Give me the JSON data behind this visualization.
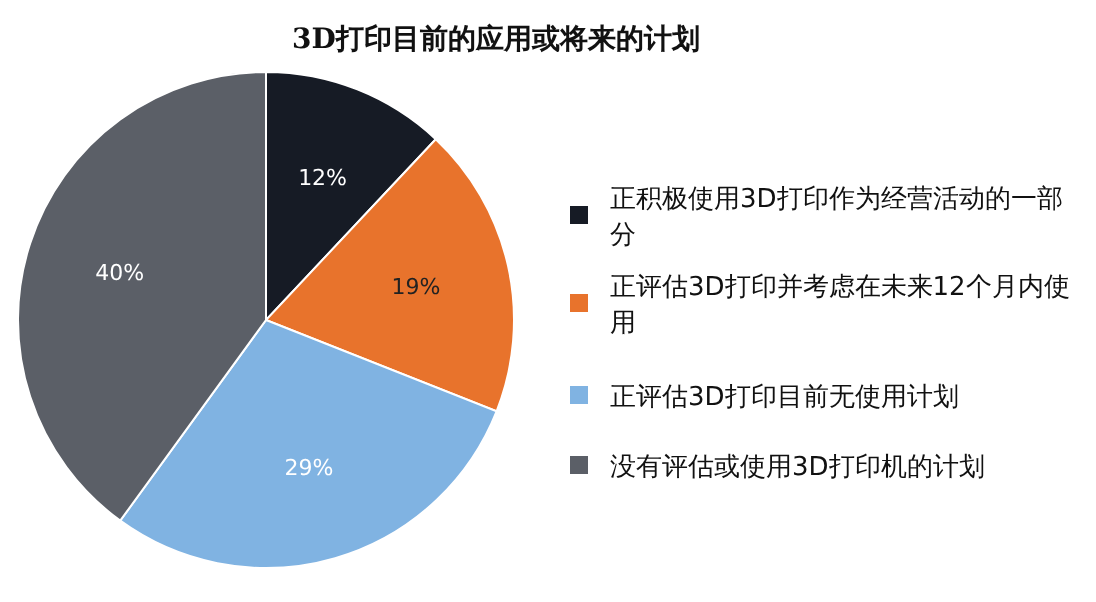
{
  "chart_data": {
    "type": "pie",
    "title": "3D打印目前的应用或将来的计划",
    "categories": [
      "正积极使用3D打印作为经营活动的一部分",
      "正评估3D打印并考虑在未来12个月内使用",
      "正评估3D打印目前无使用计划",
      "没有评估或使用3D打印机的计划"
    ],
    "values": [
      12,
      19,
      29,
      40
    ],
    "colors": [
      "#161b25",
      "#e8732c",
      "#80b3e2",
      "#5b5f67"
    ],
    "value_labels": [
      "12%",
      "19%",
      "29%",
      "40%"
    ],
    "legend": "right"
  }
}
